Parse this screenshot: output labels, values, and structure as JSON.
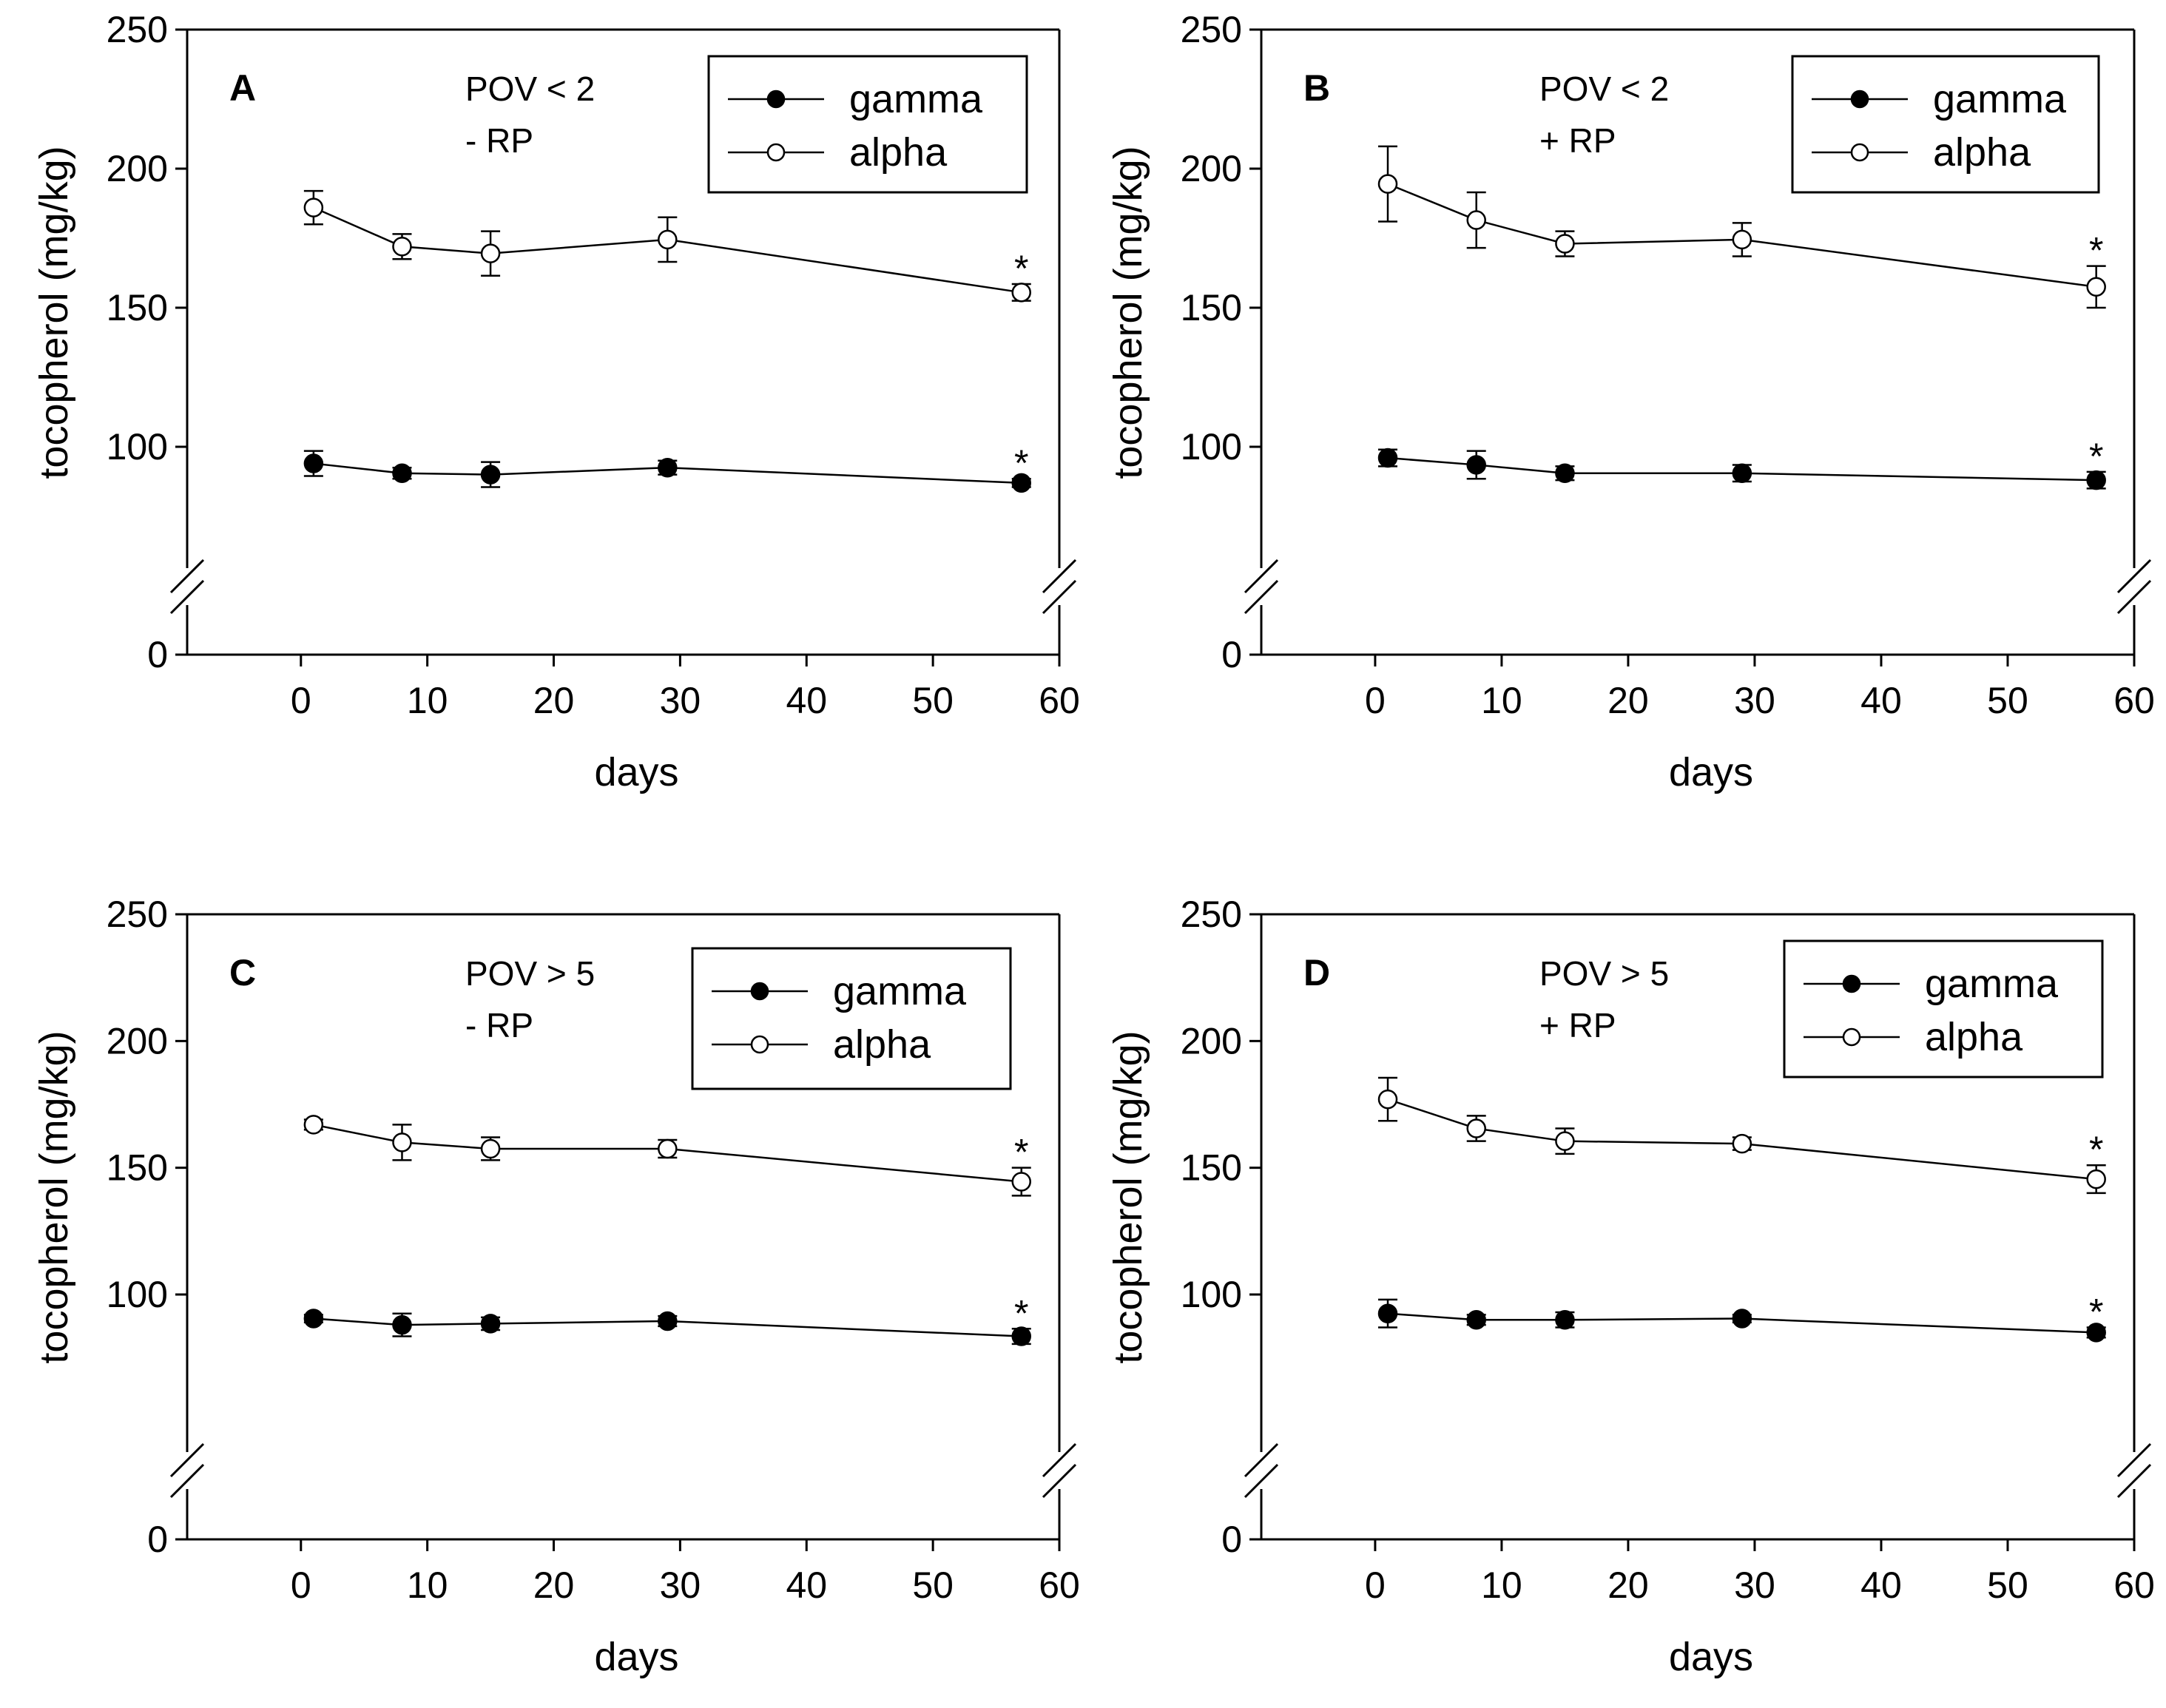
{
  "chart_data": [
    {
      "type": "line",
      "panel_label": "A",
      "condition_lines": [
        "POV < 2",
        "- RP"
      ],
      "xlabel": "days",
      "ylabel": "tocopherol (mg/kg)",
      "xlim": [
        -9,
        60
      ],
      "x_ticks": [
        "0",
        "10",
        "20",
        "30",
        "40",
        "50",
        "60"
      ],
      "y_ticks": [
        "0",
        "100",
        "150",
        "200",
        "250"
      ],
      "y_axis_break": true,
      "legend": {
        "entries": [
          "gamma",
          "alpha"
        ],
        "position": "top-right"
      },
      "x": [
        1,
        8,
        15,
        29,
        57
      ],
      "series": [
        {
          "name": "gamma",
          "marker": "filled-circle",
          "values": [
            94,
            90.5,
            90,
            92.5,
            87
          ],
          "errors": [
            4.5,
            2,
            4.5,
            2.5,
            1.5
          ],
          "significance": [
            "",
            "",
            "",
            "",
            "*"
          ]
        },
        {
          "name": "alpha",
          "marker": "open-circle",
          "values": [
            186,
            172,
            169.5,
            174.5,
            155.5
          ],
          "errors": [
            6,
            4.5,
            8,
            8,
            3
          ],
          "significance": [
            "",
            "",
            "",
            "",
            "*"
          ]
        }
      ]
    },
    {
      "type": "line",
      "panel_label": "B",
      "condition_lines": [
        "POV < 2",
        "+ RP"
      ],
      "xlabel": "days",
      "ylabel": "tocopherol (mg/kg)",
      "xlim": [
        -9,
        60
      ],
      "x_ticks": [
        "0",
        "10",
        "20",
        "30",
        "40",
        "50",
        "60"
      ],
      "y_ticks": [
        "0",
        "100",
        "150",
        "200",
        "250"
      ],
      "y_axis_break": true,
      "legend": {
        "entries": [
          "gamma",
          "alpha"
        ],
        "position": "top-right"
      },
      "x": [
        1,
        8,
        15,
        29,
        57
      ],
      "series": [
        {
          "name": "gamma",
          "marker": "filled-circle",
          "values": [
            96,
            93.5,
            90.5,
            90.5,
            88
          ],
          "errors": [
            3,
            5,
            2.5,
            3,
            3
          ],
          "significance": [
            "",
            "",
            "",
            "",
            "*"
          ]
        },
        {
          "name": "alpha",
          "marker": "open-circle",
          "values": [
            194.5,
            181.5,
            173,
            174.5,
            157.5
          ],
          "errors": [
            13.5,
            10,
            4.5,
            6,
            7.5
          ],
          "significance": [
            "",
            "",
            "",
            "",
            "*"
          ]
        }
      ]
    },
    {
      "type": "line",
      "panel_label": "C",
      "condition_lines": [
        "POV > 5",
        "- RP"
      ],
      "xlabel": "days",
      "ylabel": "tocopherol (mg/kg)",
      "xlim": [
        -9,
        60
      ],
      "x_ticks": [
        "0",
        "10",
        "20",
        "30",
        "40",
        "50",
        "60"
      ],
      "y_ticks": [
        "0",
        "100",
        "150",
        "200",
        "250"
      ],
      "y_axis_break": true,
      "legend": {
        "entries": [
          "gamma",
          "alpha"
        ],
        "position": "top-right"
      },
      "x": [
        1,
        8,
        15,
        29,
        57
      ],
      "series": [
        {
          "name": "gamma",
          "marker": "filled-circle",
          "values": [
            90.5,
            88,
            88.5,
            89.5,
            83.5
          ],
          "errors": [
            1.5,
            4.5,
            2.5,
            2,
            3
          ],
          "significance": [
            "",
            "",
            "",
            "",
            "*"
          ]
        },
        {
          "name": "alpha",
          "marker": "open-circle",
          "values": [
            167,
            160,
            157.5,
            157.5,
            144.5
          ],
          "errors": [
            2,
            7,
            4.5,
            3.5,
            5.5
          ],
          "significance": [
            "",
            "",
            "",
            "",
            "*"
          ]
        }
      ]
    },
    {
      "type": "line",
      "panel_label": "D",
      "condition_lines": [
        "POV > 5",
        "+ RP"
      ],
      "xlabel": "days",
      "ylabel": "tocopherol (mg/kg)",
      "xlim": [
        -9,
        60
      ],
      "x_ticks": [
        "0",
        "10",
        "20",
        "30",
        "40",
        "50",
        "60"
      ],
      "y_ticks": [
        "0",
        "100",
        "150",
        "200",
        "250"
      ],
      "y_axis_break": true,
      "legend": {
        "entries": [
          "gamma",
          "alpha"
        ],
        "position": "top-right"
      },
      "x": [
        1,
        8,
        15,
        29,
        57
      ],
      "series": [
        {
          "name": "gamma",
          "marker": "filled-circle",
          "values": [
            92.5,
            90,
            90,
            90.5,
            85
          ],
          "errors": [
            5.5,
            2,
            3,
            1.5,
            2
          ],
          "significance": [
            "",
            "",
            "",
            "",
            "*"
          ]
        },
        {
          "name": "alpha",
          "marker": "open-circle",
          "values": [
            177,
            165.5,
            160.5,
            159.5,
            145.5
          ],
          "errors": [
            8.5,
            5,
            5,
            2.5,
            5.5
          ],
          "significance": [
            "",
            "",
            "",
            "",
            "*"
          ]
        }
      ]
    }
  ]
}
